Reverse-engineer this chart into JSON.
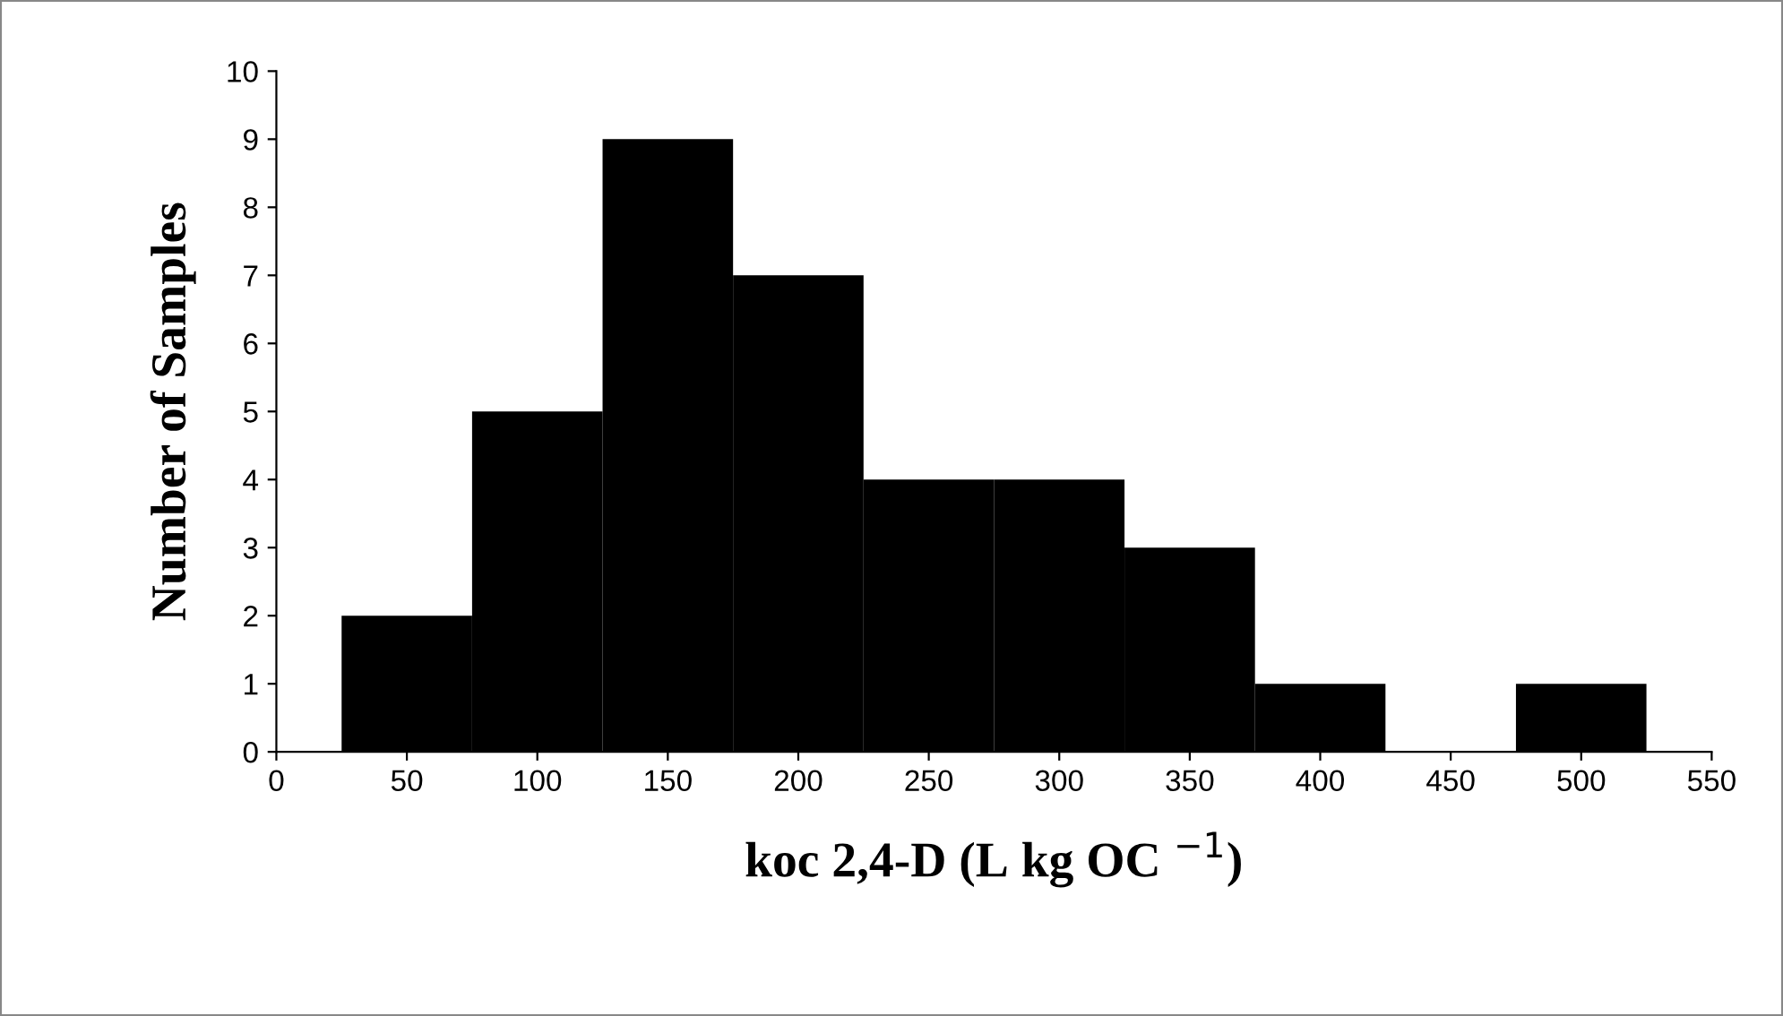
{
  "chart_data": {
    "type": "histogram",
    "xlabel": "koc 2,4-D (L kg OC $^{−1}$)",
    "ylabel": "Number of Samples",
    "bins": [
      25,
      75,
      125,
      175,
      225,
      275,
      325,
      375,
      425,
      475,
      525
    ],
    "values": [
      2,
      5,
      9,
      7,
      4,
      4,
      3,
      1,
      0,
      1
    ],
    "color": "#000000",
    "xlim": [
      0,
      550
    ],
    "xticks": [
      0,
      50,
      100,
      150,
      200,
      250,
      300,
      350,
      400,
      450,
      500,
      550
    ],
    "ylim": [
      0,
      10
    ],
    "yticks": [
      0,
      1,
      2,
      3,
      4,
      5,
      6,
      7,
      8,
      9,
      10
    ],
    "grid": false
  }
}
